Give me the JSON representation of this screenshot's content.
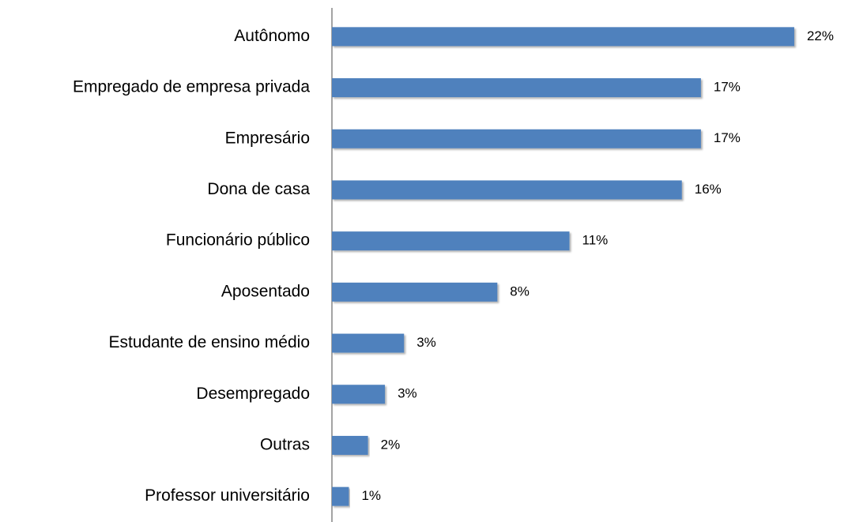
{
  "chart_data": {
    "type": "bar",
    "orientation": "horizontal",
    "categories": [
      "Autônomo",
      "Empregado de empresa privada",
      "Empresário",
      "Dona de casa",
      "Funcionário público",
      "Aposentado",
      "Estudante de ensino médio",
      "Desempregado",
      "Outras",
      "Professor universitário"
    ],
    "values": [
      21.8,
      17.4,
      17.4,
      16.5,
      11.2,
      7.8,
      3.4,
      2.5,
      1.7,
      0.8
    ],
    "value_labels": [
      "22%",
      "17%",
      "17%",
      "16%",
      "11%",
      "8%",
      "3%",
      "3%",
      "2%",
      "1%"
    ],
    "color": "#4f81bd",
    "xlim": [
      0,
      24
    ]
  }
}
